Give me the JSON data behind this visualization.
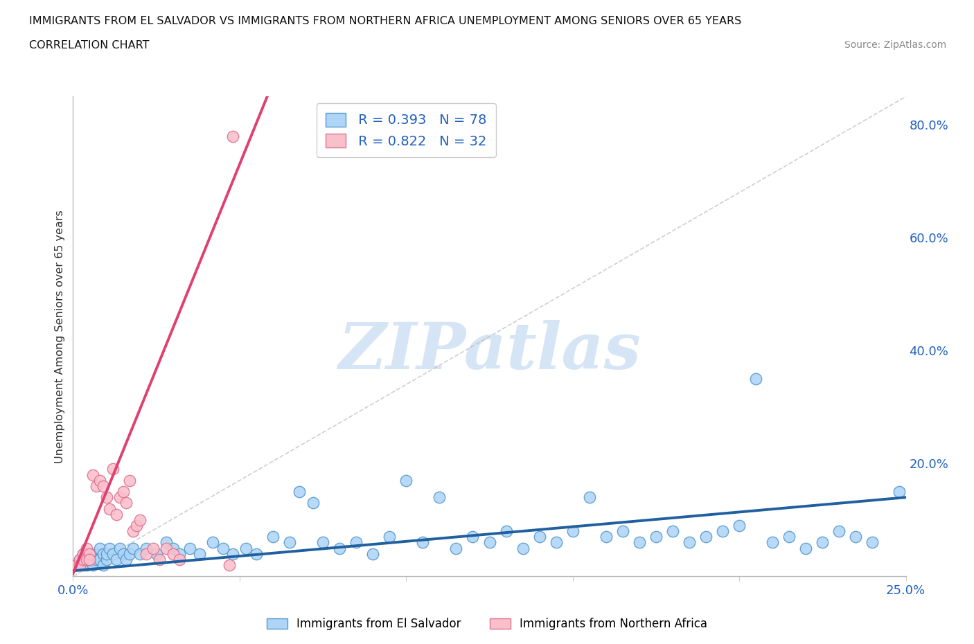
{
  "title_line1": "IMMIGRANTS FROM EL SALVADOR VS IMMIGRANTS FROM NORTHERN AFRICA UNEMPLOYMENT AMONG SENIORS OVER 65 YEARS",
  "title_line2": "CORRELATION CHART",
  "source_text": "Source: ZipAtlas.com",
  "ylabel": "Unemployment Among Seniors over 65 years",
  "xlim": [
    0.0,
    0.25
  ],
  "ylim": [
    0.0,
    0.85
  ],
  "xtick_positions": [
    0.0,
    0.05,
    0.1,
    0.15,
    0.2,
    0.25
  ],
  "xtick_labels": [
    "0.0%",
    "",
    "",
    "",
    "",
    "25.0%"
  ],
  "ytick_right_positions": [
    0.0,
    0.2,
    0.4,
    0.6,
    0.8
  ],
  "ytick_right_labels": [
    "",
    "20.0%",
    "40.0%",
    "60.0%",
    "80.0%"
  ],
  "color_es_face": "#aed4f7",
  "color_es_edge": "#5599cc",
  "color_es_line": "#2060a0",
  "color_na_face": "#f9c0cc",
  "color_na_edge": "#e07090",
  "color_na_line": "#e04070",
  "R_es": 0.393,
  "N_es": 78,
  "R_na": 0.822,
  "N_na": 32,
  "watermark": "ZIPatlas",
  "watermark_color": "#d5e5f5",
  "grid_color": "#e0e0e0",
  "bg_color": "#ffffff",
  "diag_color": "#bbbbbb",
  "legend_color": "#2060c0",
  "axis_tick_color": "#2060c0",
  "title_color": "#111111",
  "source_color": "#888888",
  "es_x": [
    0.001,
    0.002,
    0.003,
    0.003,
    0.004,
    0.004,
    0.005,
    0.005,
    0.006,
    0.006,
    0.007,
    0.007,
    0.008,
    0.008,
    0.009,
    0.009,
    0.01,
    0.01,
    0.011,
    0.012,
    0.013,
    0.014,
    0.015,
    0.016,
    0.017,
    0.018,
    0.02,
    0.022,
    0.025,
    0.028,
    0.03,
    0.032,
    0.035,
    0.038,
    0.042,
    0.045,
    0.048,
    0.052,
    0.055,
    0.06,
    0.065,
    0.068,
    0.072,
    0.075,
    0.08,
    0.085,
    0.09,
    0.095,
    0.1,
    0.105,
    0.11,
    0.115,
    0.12,
    0.125,
    0.13,
    0.135,
    0.14,
    0.145,
    0.15,
    0.155,
    0.16,
    0.165,
    0.17,
    0.175,
    0.18,
    0.185,
    0.19,
    0.195,
    0.2,
    0.205,
    0.21,
    0.215,
    0.22,
    0.225,
    0.23,
    0.235,
    0.24,
    0.248
  ],
  "es_y": [
    0.02,
    0.03,
    0.02,
    0.04,
    0.03,
    0.02,
    0.03,
    0.04,
    0.03,
    0.02,
    0.04,
    0.03,
    0.05,
    0.03,
    0.04,
    0.02,
    0.03,
    0.04,
    0.05,
    0.04,
    0.03,
    0.05,
    0.04,
    0.03,
    0.04,
    0.05,
    0.04,
    0.05,
    0.04,
    0.06,
    0.05,
    0.04,
    0.05,
    0.04,
    0.06,
    0.05,
    0.04,
    0.05,
    0.04,
    0.07,
    0.06,
    0.15,
    0.13,
    0.06,
    0.05,
    0.06,
    0.04,
    0.07,
    0.17,
    0.06,
    0.14,
    0.05,
    0.07,
    0.06,
    0.08,
    0.05,
    0.07,
    0.06,
    0.08,
    0.14,
    0.07,
    0.08,
    0.06,
    0.07,
    0.08,
    0.06,
    0.07,
    0.08,
    0.09,
    0.35,
    0.06,
    0.07,
    0.05,
    0.06,
    0.08,
    0.07,
    0.06,
    0.15
  ],
  "na_x": [
    0.001,
    0.002,
    0.002,
    0.003,
    0.003,
    0.004,
    0.004,
    0.005,
    0.005,
    0.006,
    0.007,
    0.008,
    0.009,
    0.01,
    0.011,
    0.012,
    0.013,
    0.014,
    0.015,
    0.016,
    0.017,
    0.018,
    0.019,
    0.02,
    0.022,
    0.024,
    0.026,
    0.028,
    0.03,
    0.032,
    0.047,
    0.048
  ],
  "na_y": [
    0.02,
    0.03,
    0.02,
    0.04,
    0.03,
    0.05,
    0.03,
    0.04,
    0.03,
    0.18,
    0.16,
    0.17,
    0.16,
    0.14,
    0.12,
    0.19,
    0.11,
    0.14,
    0.15,
    0.13,
    0.17,
    0.08,
    0.09,
    0.1,
    0.04,
    0.05,
    0.03,
    0.05,
    0.04,
    0.03,
    0.02,
    0.78
  ],
  "es_reg_slope": 0.52,
  "es_reg_intercept": 0.01,
  "na_reg_slope": 14.5,
  "na_reg_intercept": 0.005
}
